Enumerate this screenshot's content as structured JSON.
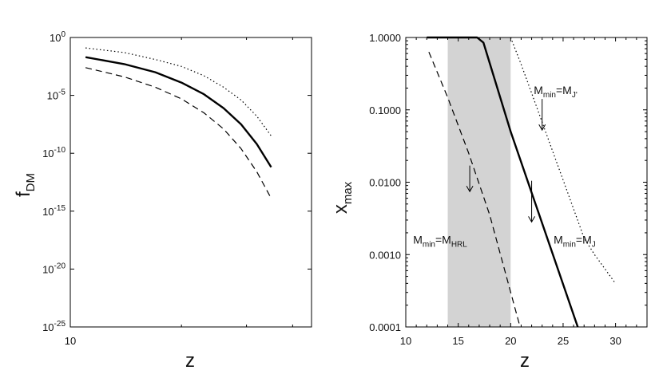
{
  "chart_data": [
    {
      "type": "line",
      "xlabel": "z",
      "ylabel": "f",
      "ylabel_sub": "DM",
      "xscale": "log",
      "yscale": "log",
      "xlim": [
        10,
        45
      ],
      "ylim": [
        1e-25,
        1
      ],
      "x_ticks": [
        {
          "value": 10,
          "label": "10"
        }
      ],
      "y_ticks": [
        {
          "value": 0,
          "base": "10",
          "exp": "0"
        },
        {
          "value": -5,
          "base": "10",
          "exp": "-5"
        },
        {
          "value": -10,
          "base": "10",
          "exp": "-10"
        },
        {
          "value": -15,
          "base": "10",
          "exp": "-15"
        },
        {
          "value": -20,
          "base": "10",
          "exp": "-20"
        },
        {
          "value": -25,
          "base": "10",
          "exp": "-25"
        }
      ],
      "series": [
        {
          "name": "dotted",
          "style": "dotted",
          "x": [
            11,
            14,
            17,
            20,
            23,
            26,
            29,
            32,
            35
          ],
          "log10_y": [
            -0.9,
            -1.3,
            -1.9,
            -2.5,
            -3.3,
            -4.3,
            -5.4,
            -6.8,
            -8.5
          ]
        },
        {
          "name": "solid",
          "style": "solid",
          "x": [
            11,
            14,
            17,
            20,
            23,
            26,
            29,
            32,
            35
          ],
          "log10_y": [
            -1.7,
            -2.3,
            -3.0,
            -3.9,
            -4.9,
            -6.1,
            -7.5,
            -9.2,
            -11.2
          ]
        },
        {
          "name": "dashed",
          "style": "dashed",
          "x": [
            11,
            14,
            17,
            20,
            23,
            26,
            29,
            32,
            35
          ],
          "log10_y": [
            -2.6,
            -3.4,
            -4.3,
            -5.3,
            -6.5,
            -7.9,
            -9.6,
            -11.6,
            -13.9
          ]
        }
      ]
    },
    {
      "type": "line",
      "xlabel": "z",
      "ylabel": "x",
      "ylabel_sub": "max",
      "xscale": "linear",
      "yscale": "log",
      "xlim": [
        10,
        33
      ],
      "ylim": [
        0.0001,
        1.0
      ],
      "x_ticks": [
        {
          "value": 10,
          "label": "10"
        },
        {
          "value": 15,
          "label": "15"
        },
        {
          "value": 20,
          "label": "20"
        },
        {
          "value": 25,
          "label": "25"
        },
        {
          "value": 30,
          "label": "30"
        }
      ],
      "y_ticks": [
        {
          "value": 1.0,
          "label": "1.0000"
        },
        {
          "value": 0.1,
          "label": "0.1000"
        },
        {
          "value": 0.01,
          "label": "0.0100"
        },
        {
          "value": 0.001,
          "label": "0.0010"
        },
        {
          "value": 0.0001,
          "label": "0.0001"
        }
      ],
      "shaded_band": {
        "x": [
          14,
          20
        ]
      },
      "series": [
        {
          "name": "M_min = M_J'",
          "style": "dotted",
          "x": [
            20,
            21,
            22,
            23,
            24,
            25,
            26,
            27,
            28,
            29,
            30
          ],
          "log10_y": [
            0,
            -0.37,
            -0.77,
            -1.17,
            -1.57,
            -1.97,
            -2.37,
            -2.77,
            -3.0,
            -3.2,
            -3.4
          ]
        },
        {
          "name": "M_min = M_J",
          "style": "solid",
          "x": [
            12,
            16.8,
            17.4,
            20,
            26.4
          ],
          "log10_y": [
            0,
            0,
            -0.07,
            -1.3,
            -4.0
          ]
        },
        {
          "name": "M_min = M_HRL",
          "style": "dashed",
          "x": [
            12.2,
            14,
            16,
            18,
            20.9
          ],
          "log10_y": [
            -0.2,
            -0.83,
            -1.6,
            -2.45,
            -4.0
          ]
        }
      ],
      "annotations": [
        {
          "id": "mjp",
          "main": "M",
          "sub1": "min",
          "eq": "=M",
          "sub2": "J'",
          "x": 22.2,
          "log10_y": -0.78
        },
        {
          "id": "mj",
          "main": "M",
          "sub1": "min",
          "eq": "=M",
          "sub2": "J",
          "x": 24.1,
          "log10_y": -2.85
        },
        {
          "id": "mhrl",
          "main": "M",
          "sub1": "min",
          "eq": "=M",
          "sub2": "HRL",
          "x": 10.7,
          "log10_y": -2.85
        }
      ],
      "arrows": [
        {
          "x": 23.0,
          "log10_y_start": -0.85,
          "log10_y_end": -1.28
        },
        {
          "x": 16.1,
          "log10_y_start": -1.77,
          "log10_y_end": -2.13
        },
        {
          "x": 22.0,
          "log10_y_start": -1.98,
          "log10_y_end": -2.55
        }
      ]
    }
  ]
}
